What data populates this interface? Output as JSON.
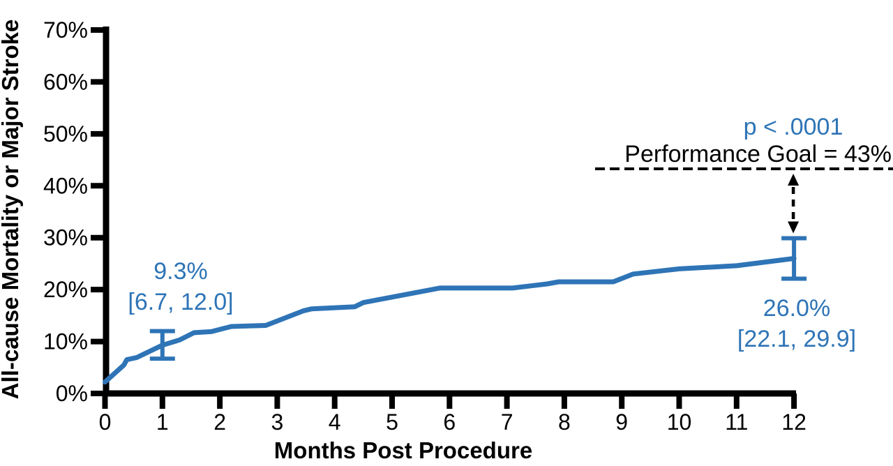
{
  "figure": {
    "background": "#FFFFFF",
    "accent_blue": "#2E74B6",
    "axis_color": "#000000"
  },
  "chart_data": {
    "type": "line",
    "title": "",
    "xlabel": "Months Post Procedure",
    "ylabel": "All-cause Mortality or Major Stroke",
    "xlim": [
      0,
      12
    ],
    "ylim_pct": [
      0,
      70
    ],
    "grid": false,
    "legend": "none",
    "x_ticks": {
      "values": [
        0,
        1,
        2,
        3,
        4,
        5,
        6,
        7,
        8,
        9,
        10,
        11,
        12
      ],
      "labels": [
        "0",
        "1",
        "2",
        "3",
        "4",
        "5",
        "6",
        "7",
        "8",
        "9",
        "10",
        "11",
        "12"
      ]
    },
    "y_ticks": {
      "values": [
        0,
        10,
        20,
        30,
        40,
        50,
        60,
        70
      ],
      "labels": [
        "0%",
        "10%",
        "20%",
        "30%",
        "40%",
        "50%",
        "60%",
        "70%"
      ]
    },
    "series": [
      {
        "name": "All-cause mortality or major stroke (Kaplan-Meier estimate)",
        "color": "#2E74B6",
        "points_month_pct": [
          [
            0,
            2.2
          ],
          [
            0.33,
            5.5
          ],
          [
            0.38,
            6.5
          ],
          [
            0.55,
            6.9
          ],
          [
            1,
            9.3
          ],
          [
            1.3,
            10.3
          ],
          [
            1.55,
            11.7
          ],
          [
            1.85,
            11.9
          ],
          [
            2.2,
            12.9
          ],
          [
            2.8,
            13.1
          ],
          [
            3.45,
            15.9
          ],
          [
            3.6,
            16.3
          ],
          [
            4.35,
            16.7
          ],
          [
            4.5,
            17.5
          ],
          [
            5.83,
            20.3
          ],
          [
            7.1,
            20.3
          ],
          [
            7.7,
            21.1
          ],
          [
            7.9,
            21.5
          ],
          [
            8.85,
            21.5
          ],
          [
            9.2,
            23
          ],
          [
            10,
            24
          ],
          [
            11,
            24.6
          ],
          [
            12,
            26
          ]
        ]
      }
    ],
    "error_bars": [
      {
        "month": 1,
        "estimate_pct": 9.3,
        "ci_low_pct": 6.7,
        "ci_high_pct": 12.0
      },
      {
        "month": 12,
        "estimate_pct": 26.0,
        "ci_low_pct": 22.1,
        "ci_high_pct": 29.9
      }
    ],
    "reference_line": {
      "value_pct": 43,
      "label": "Performance Goal = 43%",
      "style": "dashed",
      "color": "#000000"
    },
    "p_value_label": "p < .0001",
    "arrow": {
      "style": "dashed-double-head",
      "from_pct": 43,
      "to_pct": 29.9,
      "at_month": 12
    },
    "annotations": [
      {
        "anchor_month": 1,
        "line1": "9.3%",
        "line2": "[6.7, 12.0]"
      },
      {
        "anchor_month": 12,
        "line1": "26.0%",
        "line2": "[22.1, 29.9]"
      }
    ]
  }
}
